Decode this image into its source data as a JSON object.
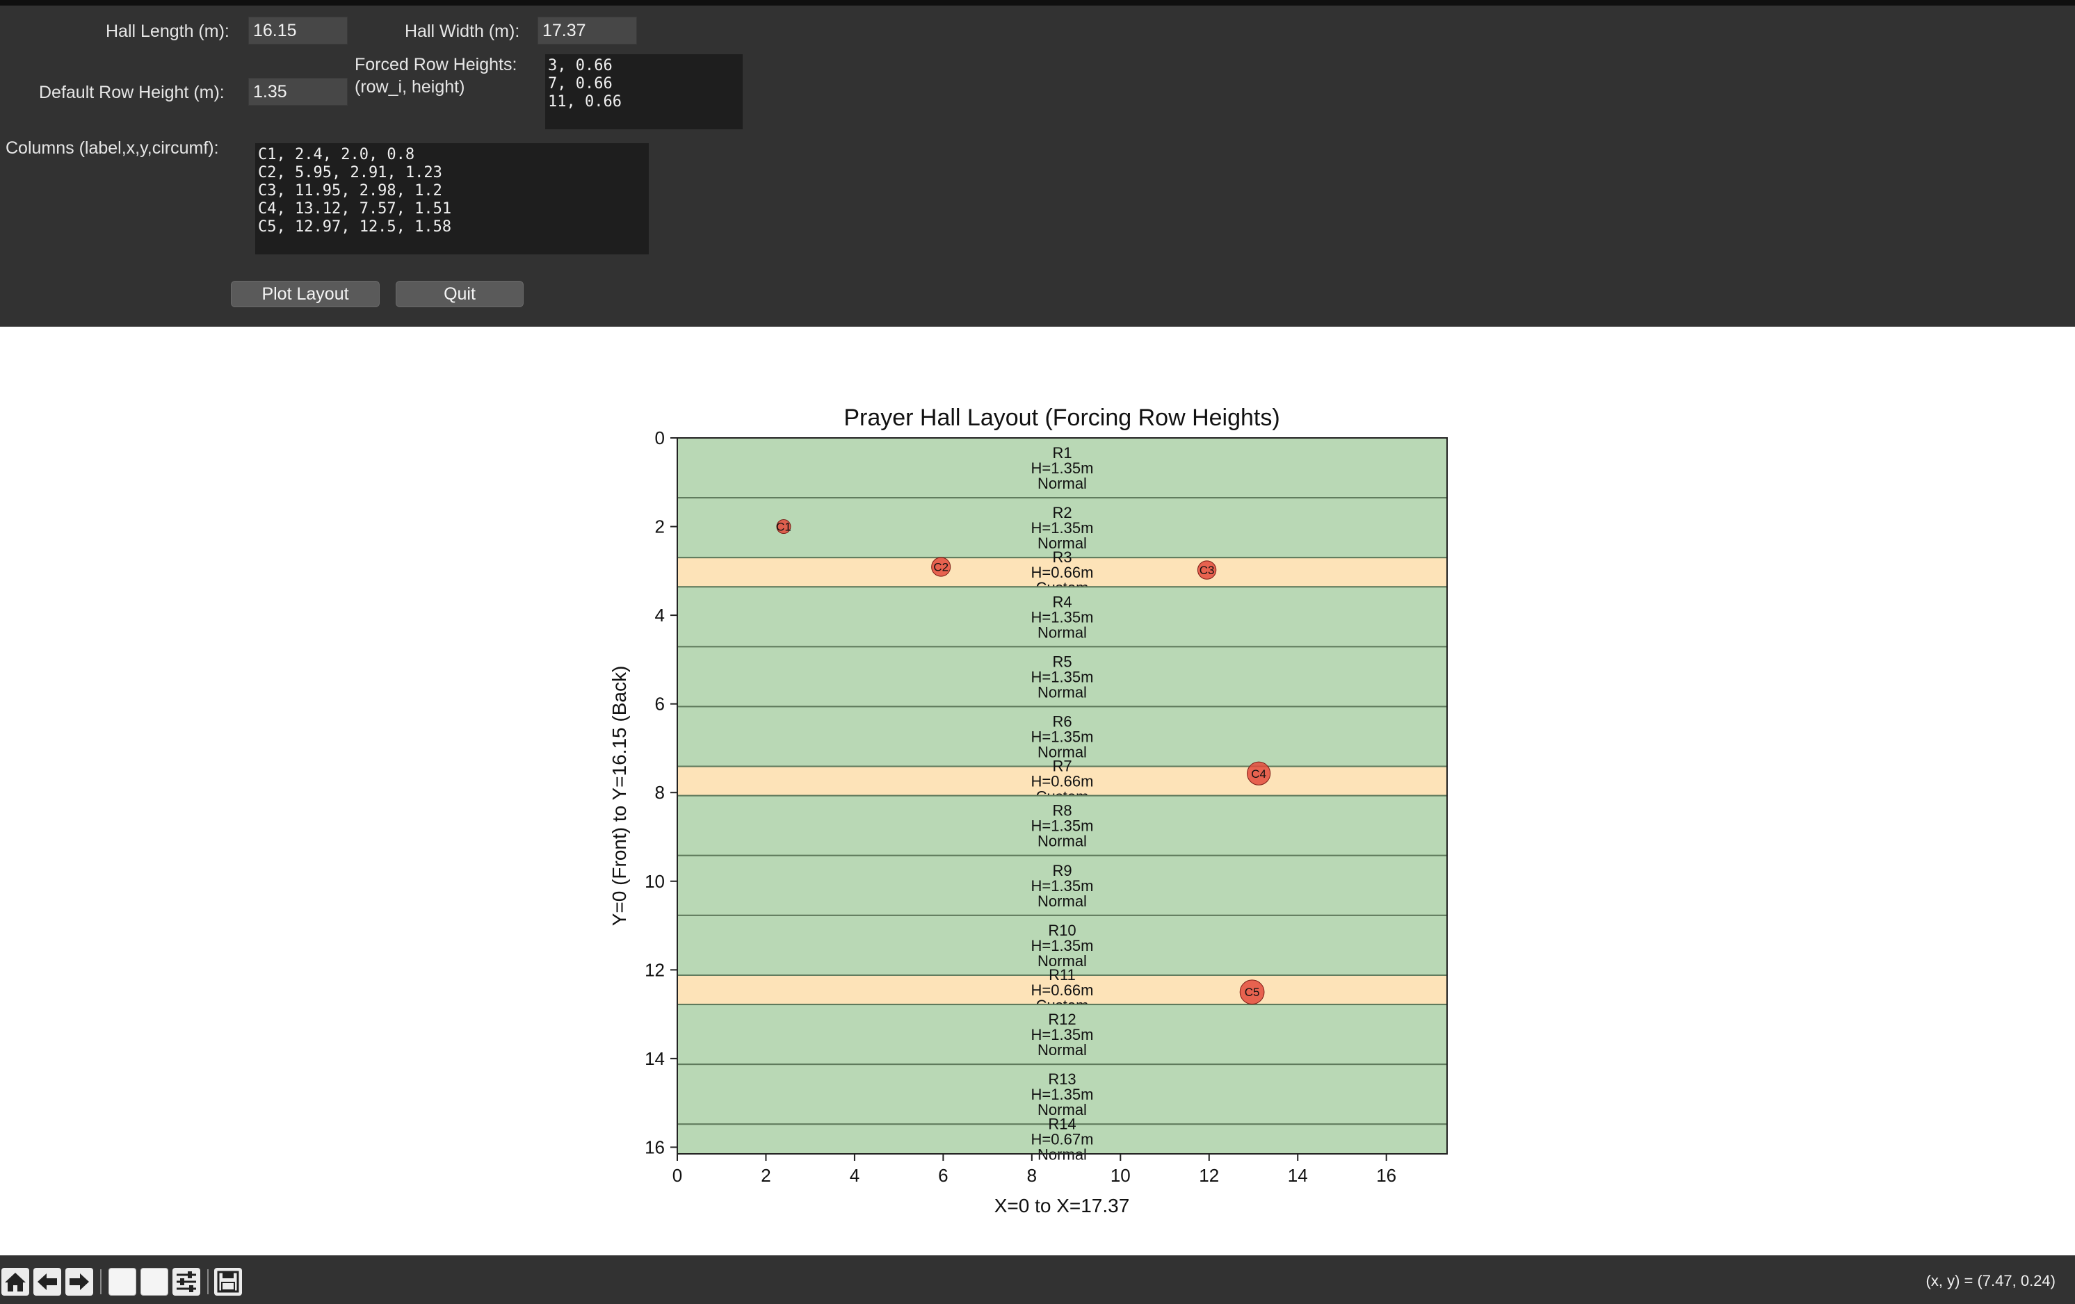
{
  "form": {
    "hall_length": {
      "label": "Hall Length (m):",
      "value": "16.15"
    },
    "hall_width": {
      "label": "Hall Width (m):",
      "value": "17.37"
    },
    "forced_rows": {
      "label_line1": "Forced Row Heights:",
      "label_line2": "(row_i, height)",
      "value": "3, 0.66\n7, 0.66\n11, 0.66"
    },
    "default_row_height": {
      "label": "Default Row Height (m):",
      "value": "1.35"
    },
    "columns": {
      "label": "Columns (label,x,y,circumf):",
      "value": "C1, 2.4, 2.0, 0.8\nC2, 5.95, 2.91, 1.23\nC3, 11.95, 2.98, 1.2\nC4, 13.12, 7.57, 1.51\nC5, 12.97, 12.5, 1.58"
    },
    "buttons": {
      "plot": "Plot Layout",
      "quit": "Quit"
    }
  },
  "chart_data": {
    "type": "layout",
    "title": "Prayer Hall Layout (Forcing Row Heights)",
    "xlabel": "X=0 to X=17.37",
    "ylabel": "Y=0 (Front) to Y=16.15 (Back)",
    "xlim": [
      0,
      17.37
    ],
    "ylim": [
      0,
      16.15
    ],
    "y_inverted": true,
    "x_ticks": [
      0,
      2,
      4,
      6,
      8,
      10,
      12,
      14,
      16
    ],
    "y_ticks": [
      0,
      2,
      4,
      6,
      8,
      10,
      12,
      14,
      16
    ],
    "colors": {
      "normal": "#b9d8b5",
      "custom": "#fde3b8",
      "row_border": "#5f7a5c",
      "column": "#e34b3c"
    },
    "rows": [
      {
        "name": "R1",
        "start": 0.0,
        "height": 1.35,
        "height_label": "H=1.35m",
        "type": "Normal"
      },
      {
        "name": "R2",
        "start": 1.35,
        "height": 1.35,
        "height_label": "H=1.35m",
        "type": "Normal"
      },
      {
        "name": "R3",
        "start": 2.7,
        "height": 0.66,
        "height_label": "H=0.66m",
        "type": "Custom"
      },
      {
        "name": "R4",
        "start": 3.36,
        "height": 1.35,
        "height_label": "H=1.35m",
        "type": "Normal"
      },
      {
        "name": "R5",
        "start": 4.71,
        "height": 1.35,
        "height_label": "H=1.35m",
        "type": "Normal"
      },
      {
        "name": "R6",
        "start": 6.06,
        "height": 1.35,
        "height_label": "H=1.35m",
        "type": "Normal"
      },
      {
        "name": "R7",
        "start": 7.41,
        "height": 0.66,
        "height_label": "H=0.66m",
        "type": "Custom"
      },
      {
        "name": "R8",
        "start": 8.07,
        "height": 1.35,
        "height_label": "H=1.35m",
        "type": "Normal"
      },
      {
        "name": "R9",
        "start": 9.42,
        "height": 1.35,
        "height_label": "H=1.35m",
        "type": "Normal"
      },
      {
        "name": "R10",
        "start": 10.77,
        "height": 1.35,
        "height_label": "H=1.35m",
        "type": "Normal"
      },
      {
        "name": "R11",
        "start": 12.12,
        "height": 0.66,
        "height_label": "H=0.66m",
        "type": "Custom"
      },
      {
        "name": "R12",
        "start": 12.78,
        "height": 1.35,
        "height_label": "H=1.35m",
        "type": "Normal"
      },
      {
        "name": "R13",
        "start": 14.13,
        "height": 1.35,
        "height_label": "H=1.35m",
        "type": "Normal"
      },
      {
        "name": "R14",
        "start": 15.48,
        "height": 0.67,
        "height_label": "H=0.67m",
        "type": "Normal"
      }
    ],
    "columns": [
      {
        "label": "C1",
        "x": 2.4,
        "y": 2.0,
        "circumf": 0.8
      },
      {
        "label": "C2",
        "x": 5.95,
        "y": 2.91,
        "circumf": 1.23
      },
      {
        "label": "C3",
        "x": 11.95,
        "y": 2.98,
        "circumf": 1.2
      },
      {
        "label": "C4",
        "x": 13.12,
        "y": 7.57,
        "circumf": 1.51
      },
      {
        "label": "C5",
        "x": 12.97,
        "y": 12.5,
        "circumf": 1.58
      }
    ]
  },
  "toolbar": {
    "icons": [
      "home-icon",
      "back-arrow-icon",
      "forward-arrow-icon",
      "pan-icon",
      "zoom-icon",
      "configure-subplots-icon",
      "save-icon"
    ],
    "coordinates": "(x, y) = (7.47, 0.24)"
  }
}
